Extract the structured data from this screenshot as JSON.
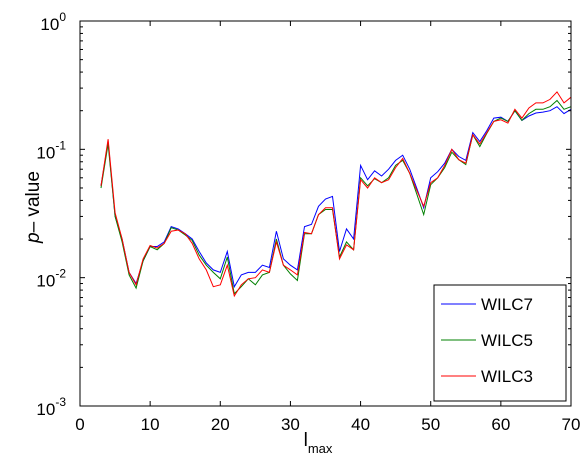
{
  "chart_data": {
    "type": "line",
    "xlabel": {
      "text": "l",
      "subscript": "max"
    },
    "ylabel": {
      "italic": "p",
      "rest": "– value"
    },
    "xlim": [
      0,
      70
    ],
    "ylim": [
      0.001,
      1
    ],
    "yscale": "log",
    "grid": false,
    "legend_position": "bottom-right",
    "x_ticks": [
      0,
      10,
      20,
      30,
      40,
      50,
      60,
      70
    ],
    "x_tick_labels": [
      "0",
      "10",
      "20",
      "30",
      "40",
      "50",
      "60",
      "70"
    ],
    "y_ticks": [
      {
        "value": 1,
        "base": "10",
        "exp": "0"
      },
      {
        "value": 0.1,
        "base": "10",
        "exp": "-1"
      },
      {
        "value": 0.01,
        "base": "10",
        "exp": "-2"
      },
      {
        "value": 0.001,
        "base": "10",
        "exp": "-3"
      }
    ],
    "x": [
      3,
      4,
      5,
      6,
      7,
      8,
      9,
      10,
      11,
      12,
      13,
      14,
      15,
      16,
      17,
      18,
      19,
      20,
      21,
      22,
      23,
      24,
      25,
      26,
      27,
      28,
      29,
      30,
      31,
      32,
      33,
      34,
      35,
      36,
      37,
      38,
      39,
      40,
      41,
      42,
      43,
      44,
      45,
      46,
      47,
      48,
      49,
      50,
      51,
      52,
      53,
      54,
      55,
      56,
      57,
      58,
      59,
      60,
      61,
      62,
      63,
      64,
      65,
      66,
      67,
      68,
      69,
      70
    ],
    "series": [
      {
        "name": "WILC7",
        "color": "#0000ff",
        "values": [
          0.052,
          0.115,
          0.03,
          0.02,
          0.011,
          0.009,
          0.0135,
          0.0175,
          0.0175,
          0.019,
          0.025,
          0.024,
          0.022,
          0.02,
          0.016,
          0.013,
          0.0115,
          0.011,
          0.016,
          0.0085,
          0.0105,
          0.011,
          0.011,
          0.0125,
          0.012,
          0.023,
          0.014,
          0.0125,
          0.0115,
          0.025,
          0.026,
          0.036,
          0.041,
          0.043,
          0.016,
          0.024,
          0.02,
          0.075,
          0.058,
          0.068,
          0.062,
          0.07,
          0.082,
          0.09,
          0.07,
          0.05,
          0.035,
          0.06,
          0.067,
          0.078,
          0.1,
          0.088,
          0.082,
          0.135,
          0.115,
          0.14,
          0.175,
          0.178,
          0.165,
          0.2,
          0.168,
          0.182,
          0.192,
          0.195,
          0.2,
          0.215,
          0.19,
          0.205
        ]
      },
      {
        "name": "WILC5",
        "color": "#008000",
        "values": [
          0.05,
          0.11,
          0.03,
          0.019,
          0.0105,
          0.0083,
          0.0135,
          0.0175,
          0.0165,
          0.0185,
          0.0245,
          0.0235,
          0.0215,
          0.0195,
          0.015,
          0.0125,
          0.011,
          0.0098,
          0.0145,
          0.0075,
          0.0085,
          0.0098,
          0.0088,
          0.0105,
          0.011,
          0.02,
          0.0125,
          0.0107,
          0.0095,
          0.022,
          0.022,
          0.031,
          0.034,
          0.034,
          0.0145,
          0.019,
          0.0165,
          0.06,
          0.052,
          0.059,
          0.055,
          0.06,
          0.075,
          0.082,
          0.065,
          0.045,
          0.031,
          0.053,
          0.06,
          0.072,
          0.095,
          0.083,
          0.076,
          0.13,
          0.105,
          0.133,
          0.165,
          0.175,
          0.165,
          0.2,
          0.168,
          0.19,
          0.205,
          0.205,
          0.215,
          0.24,
          0.205,
          0.215
        ]
      },
      {
        "name": "WILC3",
        "color": "#ff0000",
        "values": [
          0.052,
          0.12,
          0.032,
          0.02,
          0.011,
          0.0088,
          0.014,
          0.0178,
          0.017,
          0.0185,
          0.023,
          0.0235,
          0.022,
          0.0185,
          0.014,
          0.0115,
          0.0085,
          0.0088,
          0.0125,
          0.0072,
          0.0088,
          0.0098,
          0.01,
          0.0115,
          0.011,
          0.019,
          0.0125,
          0.0115,
          0.0105,
          0.0225,
          0.022,
          0.031,
          0.035,
          0.035,
          0.014,
          0.018,
          0.0165,
          0.058,
          0.05,
          0.06,
          0.055,
          0.058,
          0.072,
          0.085,
          0.065,
          0.048,
          0.036,
          0.055,
          0.06,
          0.075,
          0.1,
          0.083,
          0.078,
          0.13,
          0.11,
          0.135,
          0.165,
          0.17,
          0.16,
          0.205,
          0.175,
          0.21,
          0.23,
          0.23,
          0.245,
          0.28,
          0.23,
          0.255
        ]
      }
    ]
  }
}
